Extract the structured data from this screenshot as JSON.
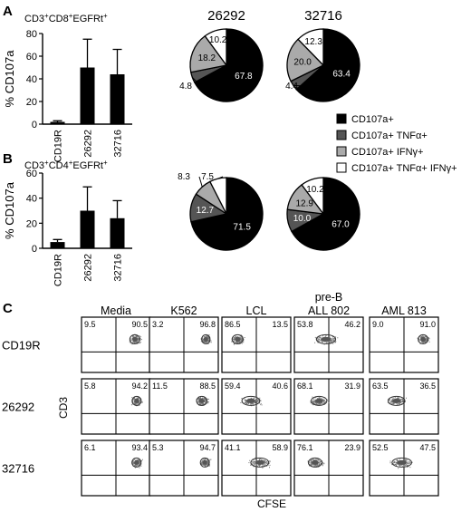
{
  "panels": [
    {
      "letter": "A",
      "title": "CD3+CD8+EGFRt+",
      "ylabel": "% CD107a"
    },
    {
      "letter": "B",
      "title": "CD3+CD4+EGFRt+",
      "ylabel": "% CD107a"
    },
    {
      "letter": "C"
    }
  ],
  "legend": {
    "entries": [
      {
        "label": "CD107a+",
        "color": "#000000"
      },
      {
        "label": "CD107a+ TNFα+",
        "color": "#555555"
      },
      {
        "label": "CD107a+ IFNγ+",
        "color": "#aaaaaa"
      },
      {
        "label": "CD107a+ TNFα+ IFNγ+",
        "color": "#ffffff"
      }
    ]
  },
  "chart_data": [
    {
      "type": "bar",
      "panel": "A",
      "title": "CD3+CD8+EGFRt+",
      "ylabel": "% CD107a",
      "categories": [
        "CD19R",
        "26292",
        "32716"
      ],
      "values": [
        2,
        50,
        44
      ],
      "errors": [
        1,
        25,
        22
      ],
      "ylim": [
        0,
        80
      ],
      "yticks": [
        0,
        20,
        40,
        60,
        80
      ]
    },
    {
      "type": "bar",
      "panel": "B",
      "title": "CD3+CD4+EGFRt+",
      "ylabel": "% CD107a",
      "categories": [
        "CD19R",
        "26292",
        "32716"
      ],
      "values": [
        5,
        30,
        24
      ],
      "errors": [
        2,
        19,
        14
      ],
      "ylim": [
        0,
        60
      ],
      "yticks": [
        0,
        20,
        40,
        60
      ]
    },
    {
      "type": "pie",
      "panel": "A",
      "title": "26292",
      "values": [
        67.8,
        4.8,
        18.2,
        10.2
      ]
    },
    {
      "type": "pie",
      "panel": "A",
      "title": "32716",
      "values": [
        63.4,
        4.4,
        20.0,
        12.3
      ]
    },
    {
      "type": "pie",
      "panel": "B",
      "title": "",
      "values": [
        71.5,
        12.7,
        8.3,
        7.5
      ]
    },
    {
      "type": "pie",
      "panel": "B",
      "title": "",
      "values": [
        67.0,
        10.0,
        12.9,
        10.2
      ]
    },
    {
      "type": "table",
      "panel": "C",
      "xlabel": "CFSE",
      "ylabel": "CD3",
      "columns": [
        "Media",
        "K562",
        "LCL",
        "pre-B\nALL 802",
        "AML 813"
      ],
      "rows": [
        "CD19R",
        "26292",
        "32716"
      ],
      "cells": [
        [
          [
            "9.5",
            "90.5"
          ],
          [
            "3.2",
            "96.8"
          ],
          [
            "86.5",
            "13.5"
          ],
          [
            "53.8",
            "46.2"
          ],
          [
            "9.0",
            "91.0"
          ]
        ],
        [
          [
            "5.8",
            "94.2"
          ],
          [
            "11.5",
            "88.5"
          ],
          [
            "59.4",
            "40.6"
          ],
          [
            "68.1",
            "31.9"
          ],
          [
            "63.5",
            "36.5"
          ]
        ],
        [
          [
            "6.1",
            "93.4"
          ],
          [
            "5.3",
            "94.7"
          ],
          [
            "41.1",
            "58.9"
          ],
          [
            "76.1",
            "23.9"
          ],
          [
            "52.5",
            "47.5"
          ]
        ]
      ]
    }
  ]
}
